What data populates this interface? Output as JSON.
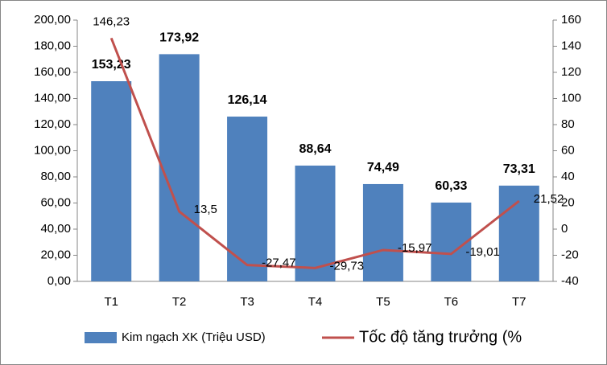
{
  "chart_data": {
    "type": "bar",
    "categories": [
      "T1",
      "T2",
      "T3",
      "T4",
      "T5",
      "T6",
      "T7"
    ],
    "series": [
      {
        "name": "Kim ngạch XK (Triệu USD)",
        "type": "bar",
        "color": "#4f81bd",
        "values": [
          153.23,
          173.92,
          126.14,
          88.64,
          74.49,
          60.33,
          73.31
        ],
        "value_labels": [
          "153,23",
          "173,92",
          "126,14",
          "88,64",
          "74,49",
          "60,33",
          "73,31"
        ]
      },
      {
        "name": "Tốc độ tăng trưởng (%",
        "type": "line",
        "axis": "y2",
        "color": "#c0504d",
        "values": [
          146.23,
          13.5,
          -27.47,
          -29.73,
          -15.97,
          -19.01,
          21.52
        ],
        "value_labels": [
          "146,23",
          "13,5",
          "-27,47",
          "-29,73",
          "-15,97",
          "-19,01",
          "21,52"
        ]
      }
    ],
    "ylim": [
      0,
      200
    ],
    "yticks": [
      {
        "value": 0,
        "label": "0,00"
      },
      {
        "value": 20,
        "label": "20,00"
      },
      {
        "value": 40,
        "label": "40,00"
      },
      {
        "value": 60,
        "label": "60,00"
      },
      {
        "value": 80,
        "label": "80,00"
      },
      {
        "value": 100,
        "label": "100,00"
      },
      {
        "value": 120,
        "label": "120,00"
      },
      {
        "value": 140,
        "label": "140,00"
      },
      {
        "value": 160,
        "label": "160,00"
      },
      {
        "value": 180,
        "label": "180,00"
      },
      {
        "value": 200,
        "label": "200,00"
      }
    ],
    "y2lim": [
      -40,
      160
    ],
    "y2ticks": [
      -40,
      -20,
      0,
      20,
      40,
      60,
      80,
      100,
      120,
      140,
      160
    ],
    "grid": false
  }
}
